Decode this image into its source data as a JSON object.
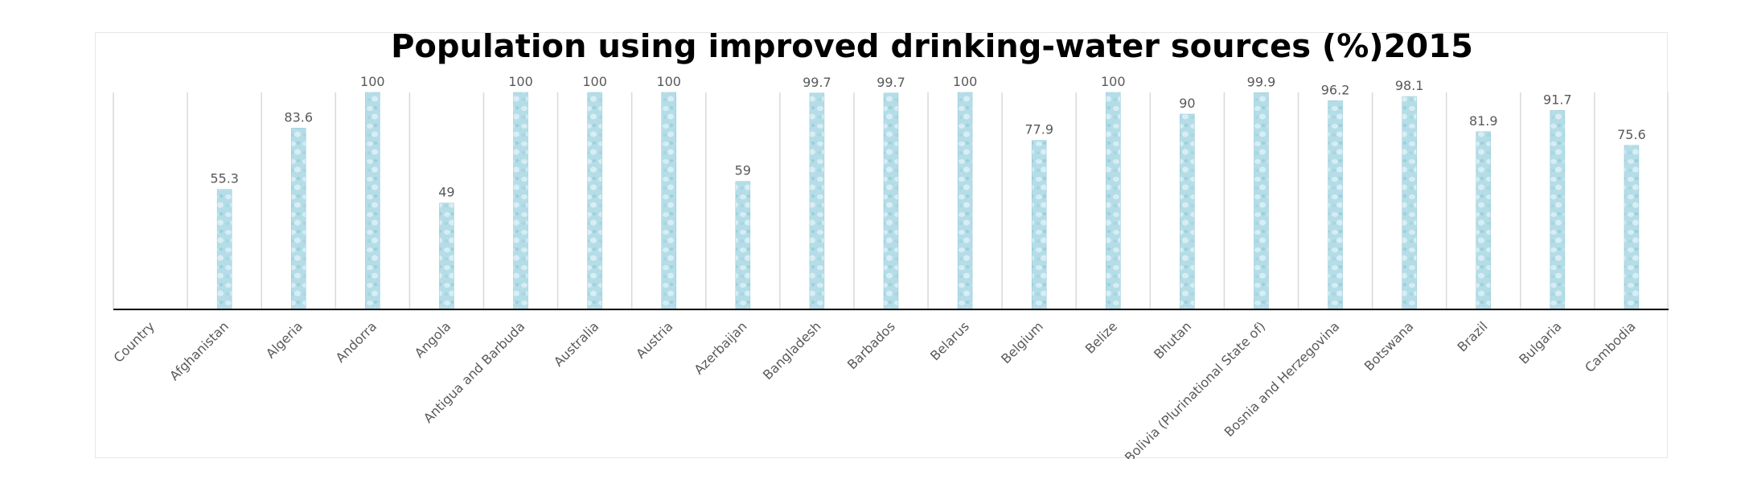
{
  "chart_data": {
    "type": "bar",
    "title": "Population using improved drinking-water sources (%)2015",
    "xlabel": "",
    "ylabel": "",
    "ylim": [
      0,
      100
    ],
    "grid": "vertical category separators",
    "legend": "none",
    "categories": [
      "Country",
      "Afghanistan",
      "Algeria",
      "Andorra",
      "Angola",
      "Antigua and Barbuda",
      "Australia",
      "Austria",
      "Azerbaijan",
      "Bangladesh",
      "Barbados",
      "Belarus",
      "Belgium",
      "Belize",
      "Bhutan",
      "Bolivia (Plurinational State of)",
      "Bosnia and Herzegovina",
      "Botswana",
      "Brazil",
      "Bulgaria",
      "Cambodia"
    ],
    "values": [
      null,
      55.3,
      83.6,
      100,
      49,
      100,
      100,
      100,
      59,
      99.7,
      99.7,
      100,
      77.9,
      100,
      90,
      99.9,
      96.2,
      98.1,
      81.9,
      91.7,
      75.6
    ],
    "data_labels": [
      "",
      "55.3",
      "83.6",
      "100",
      "49",
      "100",
      "100",
      "100",
      "59",
      "99.7",
      "99.7",
      "100",
      "77.9",
      "100",
      "90",
      "99.9",
      "96.2",
      "98.1",
      "81.9",
      "91.7",
      "75.6"
    ],
    "colors": {
      "bar": "#b4dde7",
      "bar_highlight": "#dff1f6",
      "bar_shadow": "#8fc7d6",
      "axis": "#000000",
      "grid": "#d9d9d9",
      "label": "#595959"
    }
  }
}
